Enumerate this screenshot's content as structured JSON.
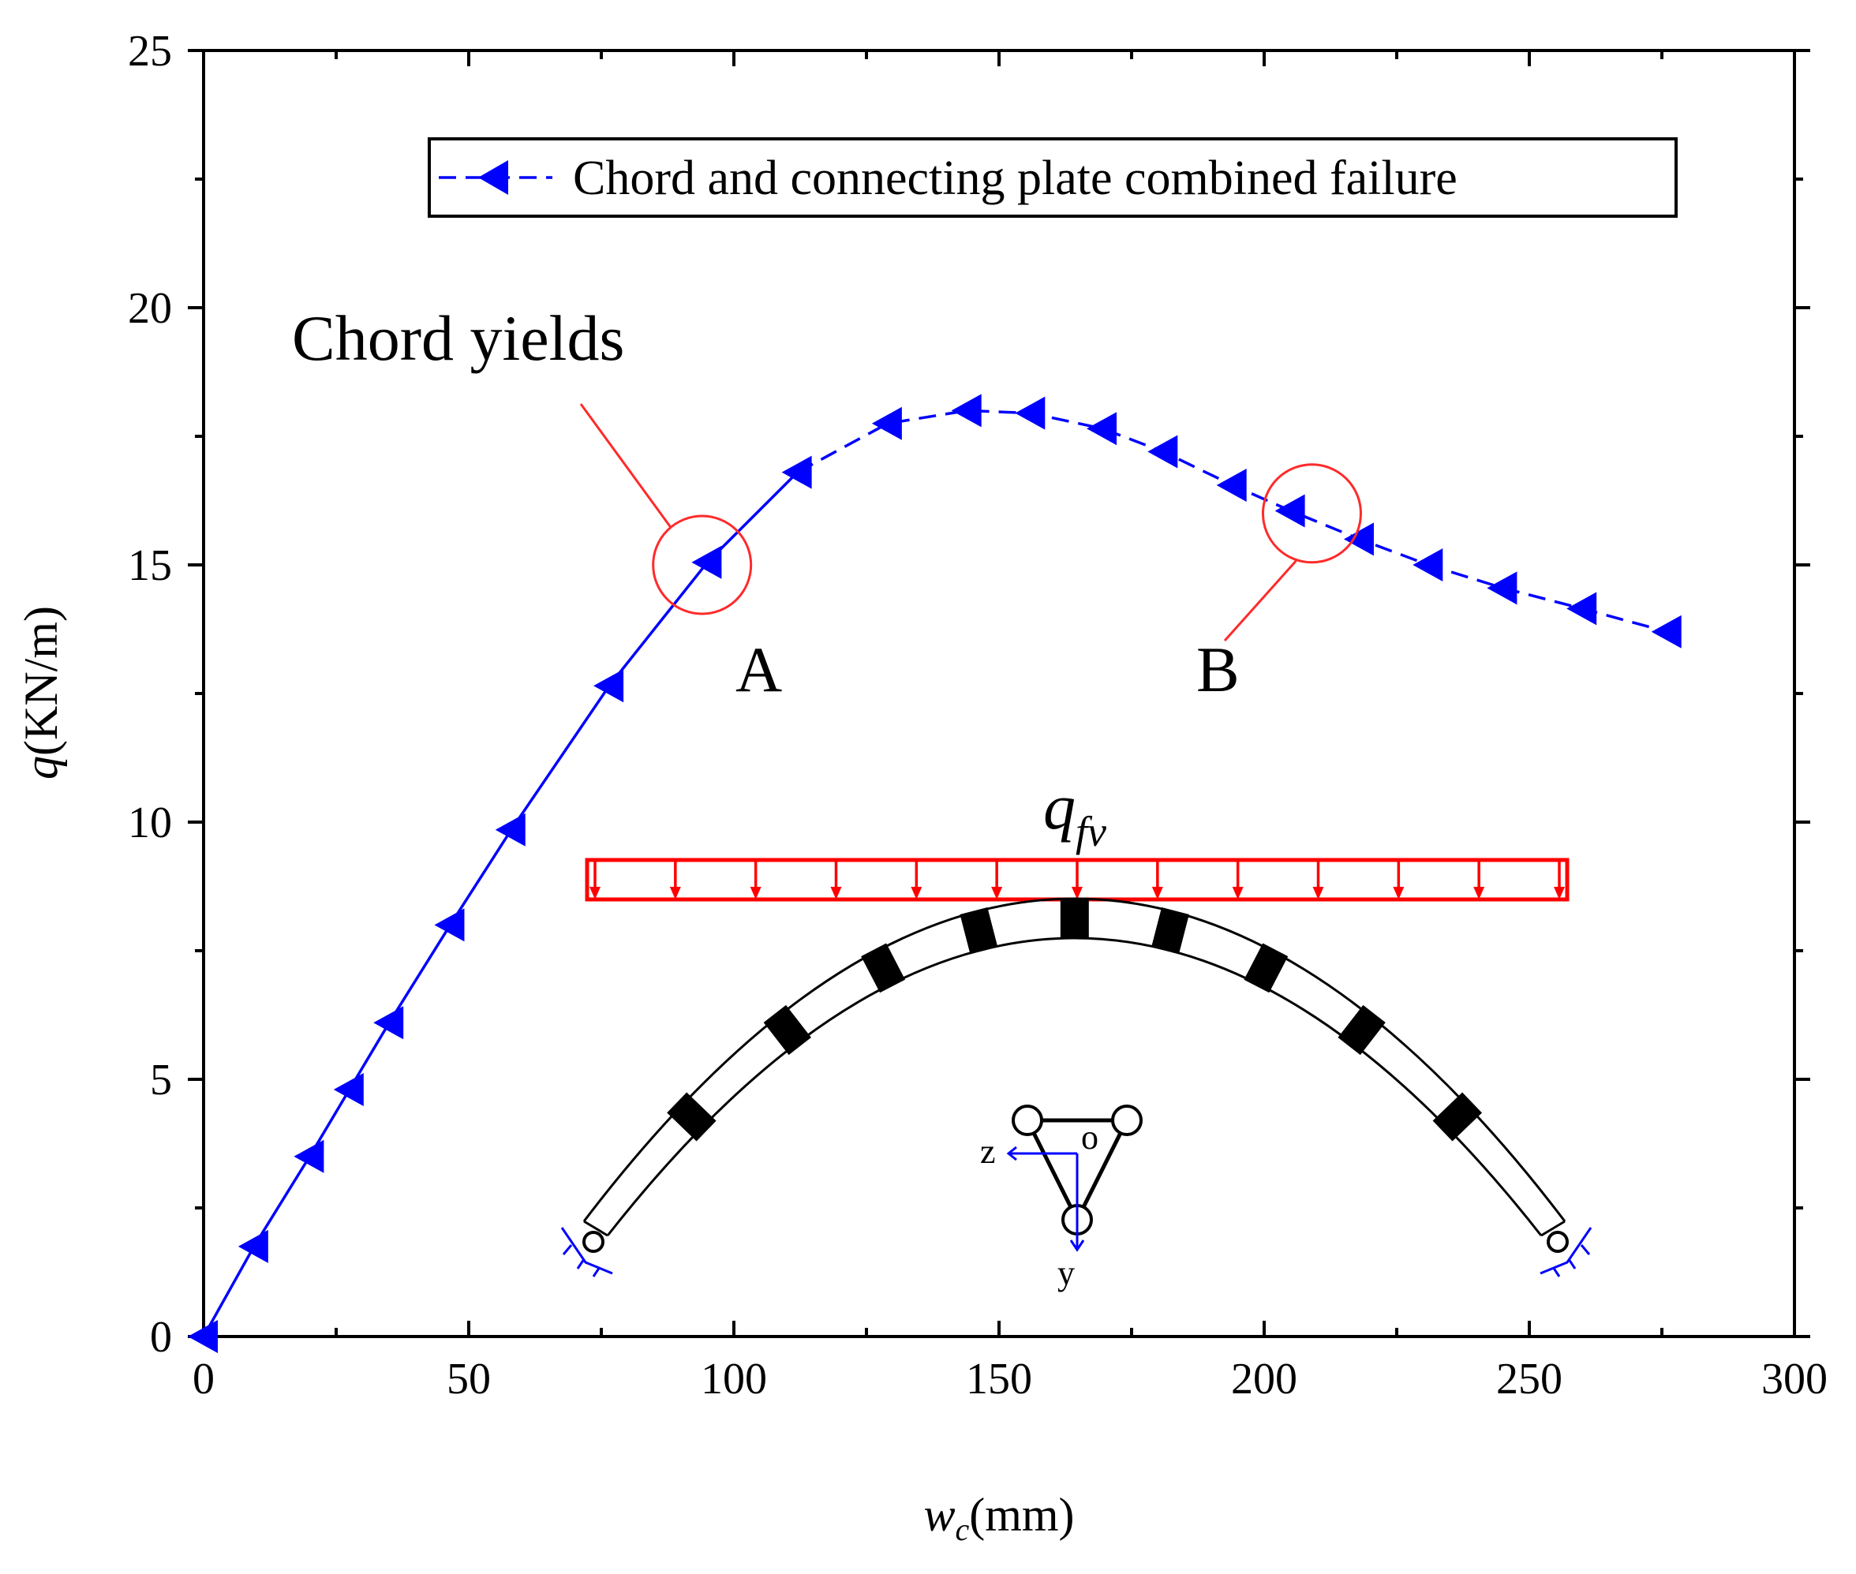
{
  "chart_data": {
    "type": "line",
    "xlabel_main": "w",
    "xlabel_sub": "c",
    "xlabel_unit": "(mm)",
    "ylabel_main": "q",
    "ylabel_unit": "(KN/m)",
    "xlim": [
      0,
      300
    ],
    "ylim": [
      0,
      25
    ],
    "x_ticks": [
      0,
      50,
      100,
      150,
      200,
      250,
      300
    ],
    "y_ticks": [
      0,
      5,
      10,
      15,
      20,
      25
    ],
    "grid": false,
    "legend_position": "top-right",
    "series": [
      {
        "name": "Chord and connecting plate combined failure",
        "color": "#0000ff",
        "marker": "left-triangle",
        "x": [
          0,
          9.5,
          20,
          27.5,
          35,
          46.5,
          58,
          76.5,
          95,
          112,
          129,
          144,
          156,
          169.5,
          181,
          194,
          205,
          218,
          231,
          245,
          260,
          276
        ],
        "y": [
          0,
          1.75,
          3.5,
          4.8,
          6.1,
          8.0,
          9.85,
          12.65,
          15.05,
          16.8,
          17.75,
          18.0,
          17.95,
          17.65,
          17.2,
          16.55,
          16.05,
          15.5,
          15.0,
          14.55,
          14.15,
          13.7
        ]
      }
    ],
    "annotations": {
      "chord_yields": "Chord yields",
      "point_a": "A",
      "point_b": "B",
      "load_main": "q",
      "load_sub": "fv",
      "coord_z": "z",
      "coord_o": "o",
      "coord_y": "y"
    },
    "callout_points": {
      "a": [
        94,
        15
      ],
      "b": [
        209,
        16
      ]
    }
  }
}
